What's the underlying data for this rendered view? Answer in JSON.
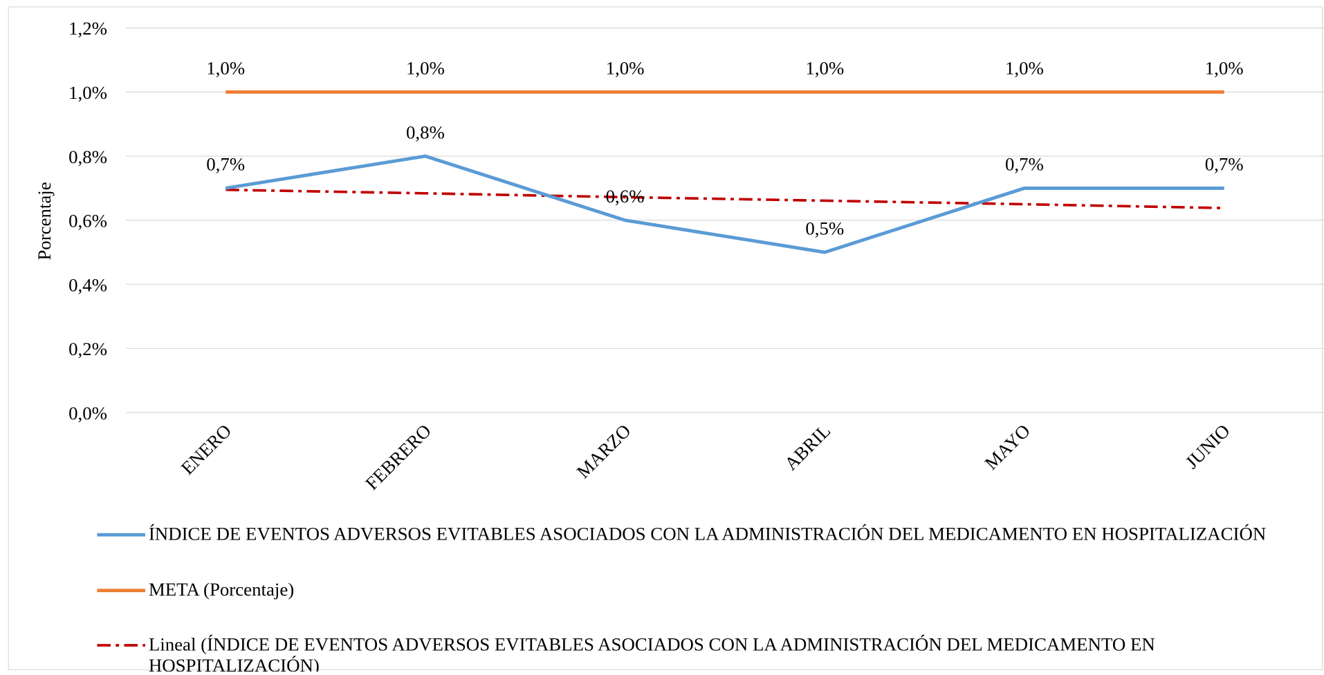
{
  "chart_data": {
    "type": "line",
    "y_label": "Porcentaje",
    "categories": [
      "ENERO",
      "FEBRERO",
      "MARZO",
      "ABRIL",
      "MAYO",
      "JUNIO"
    ],
    "series": [
      {
        "name": "ÍNDICE DE EVENTOS ADVERSOS EVITABLES ASOCIADOS CON LA ADMINISTRACIÓN DEL MEDICAMENTO EN HOSPITALIZACIÓN",
        "color": "#5b9bd5",
        "values": [
          0.7,
          0.8,
          0.6,
          0.5,
          0.7,
          0.7
        ],
        "value_labels": [
          "0,7%",
          "0,8%",
          "0,6%",
          "0,5%",
          "0,7%",
          "0,7%"
        ]
      },
      {
        "name": "META (Porcentaje)",
        "color": "#ed7d31",
        "values": [
          1.0,
          1.0,
          1.0,
          1.0,
          1.0,
          1.0
        ],
        "value_labels": [
          "1,0%",
          "1,0%",
          "1,0%",
          "1,0%",
          "1,0%",
          "1,0%"
        ]
      },
      {
        "name": "Lineal (ÍNDICE DE EVENTOS ADVERSOS EVITABLES ASOCIADOS CON LA ADMINISTRACIÓN DEL MEDICAMENTO EN HOSPITALIZACIÓN)",
        "color": "#c00000",
        "dash": "dashdot",
        "values": [
          0.695,
          0.684,
          0.672,
          0.661,
          0.65,
          0.638
        ]
      }
    ],
    "ylim": [
      0,
      1.2
    ],
    "yticks": [
      {
        "value": 0,
        "label": "0,0%"
      },
      {
        "value": 0.2,
        "label": "0,2%"
      },
      {
        "value": 0.4,
        "label": "0,4%"
      },
      {
        "value": 0.6,
        "label": "0,6%"
      },
      {
        "value": 0.8,
        "label": "0,8%"
      },
      {
        "value": 1.0,
        "label": "1,0%"
      },
      {
        "value": 1.2,
        "label": "1,2%"
      }
    ],
    "grid": true
  }
}
